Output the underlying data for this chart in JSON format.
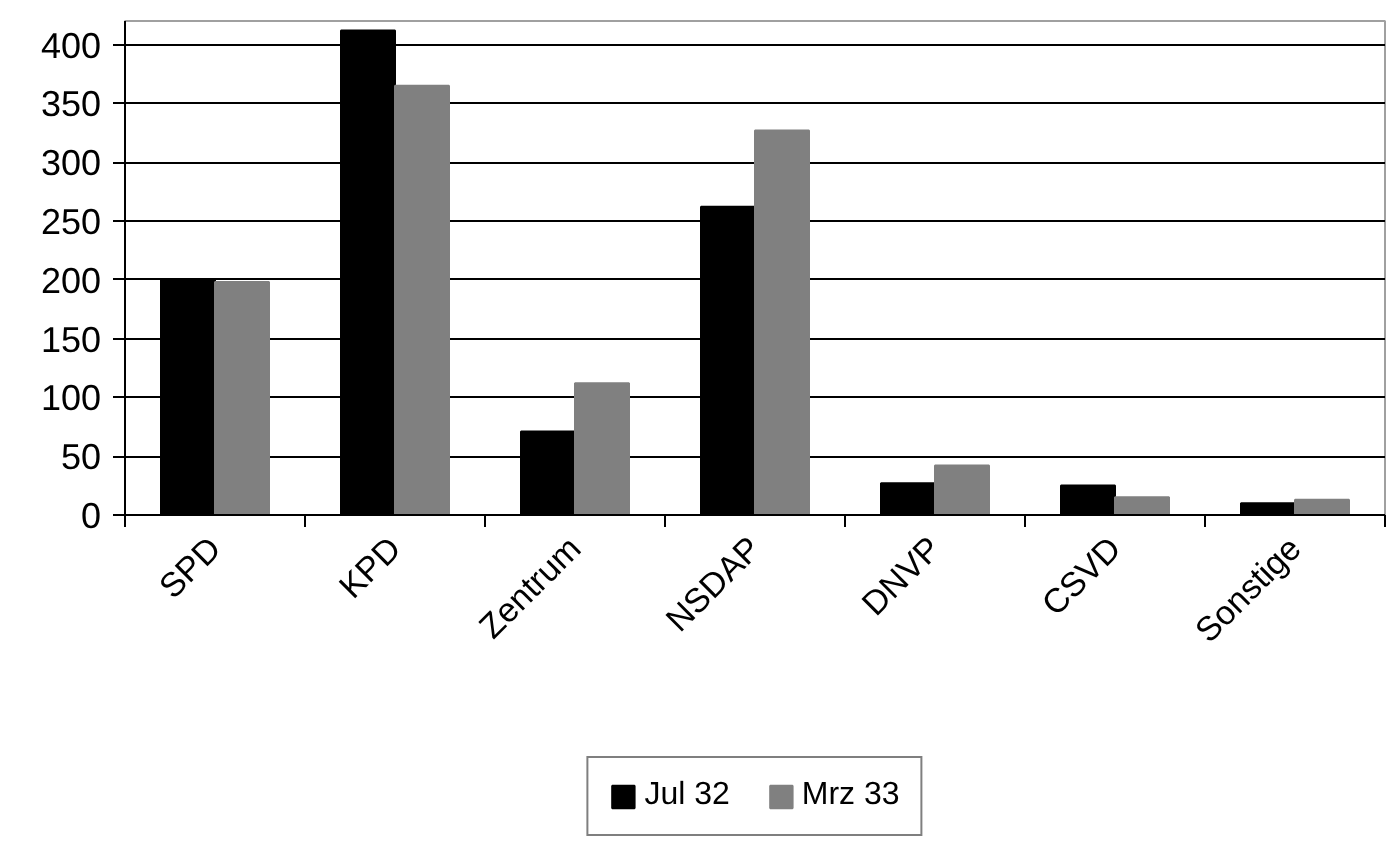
{
  "chart_data": {
    "type": "bar",
    "categories": [
      "SPD",
      "KPD",
      "Zentrum",
      "NSDAP",
      "DNVP",
      "CSVD",
      "Sonstige"
    ],
    "series": [
      {
        "name": "Jul 32",
        "color": "#000000",
        "values": [
          200,
          412,
          71,
          262,
          27,
          25,
          10
        ]
      },
      {
        "name": "Mrz 33",
        "color": "#808080",
        "values": [
          198,
          365,
          112,
          327,
          42,
          15,
          13
        ]
      }
    ],
    "ylim": [
      0,
      420
    ],
    "yticks": [
      0,
      50,
      100,
      150,
      200,
      250,
      300,
      350,
      400
    ],
    "grid": "y",
    "legend": "bottom"
  }
}
